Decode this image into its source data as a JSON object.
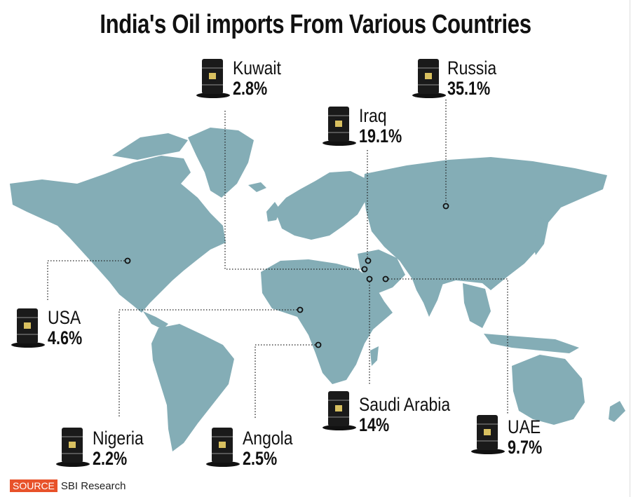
{
  "title": "India's Oil imports From Various Countries",
  "colors": {
    "land": "#84adb6",
    "text": "#111111",
    "source_tag": "#e8522a",
    "barrel": "#1a1a1a"
  },
  "countries": [
    {
      "id": "kuwait",
      "name": "Kuwait",
      "share": "2.8%"
    },
    {
      "id": "russia",
      "name": "Russia",
      "share": "35.1%"
    },
    {
      "id": "iraq",
      "name": "Iraq",
      "share": "19.1%"
    },
    {
      "id": "usa",
      "name": "USA",
      "share": "4.6%"
    },
    {
      "id": "saudi",
      "name": "Saudi Arabia",
      "share": "14%"
    },
    {
      "id": "uae",
      "name": "UAE",
      "share": "9.7%"
    },
    {
      "id": "nigeria",
      "name": "Nigeria",
      "share": "2.2%"
    },
    {
      "id": "angola",
      "name": "Angola",
      "share": "2.5%"
    }
  ],
  "source": {
    "tag": "SOURCE",
    "text": "SBI Research"
  }
}
